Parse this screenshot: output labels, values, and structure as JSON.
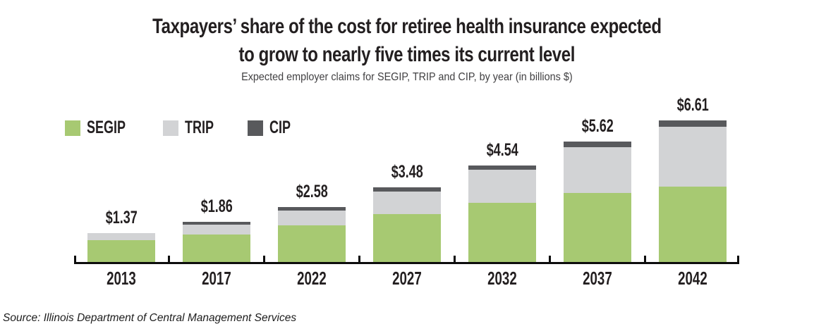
{
  "title": {
    "line1": "Taxpayers’ share of the cost for retiree health insurance expected",
    "line2": "to grow to nearly five times its current level"
  },
  "subtitle": "Expected employer claims for SEGIP, TRIP and CIP, by year (in billions $)",
  "source": "Source: Illinois Department of Central Management Services",
  "colors": {
    "segip_green": "#a7c972",
    "trip_gray": "#d2d3d5",
    "cip_dark_gray": "#58595c",
    "text": "#231f20",
    "axis": "#0d0d0d"
  },
  "chart_data": {
    "type": "bar",
    "stacked": true,
    "title": "Taxpayers’ share of the cost for retiree health insurance expected to grow to nearly five times its current level",
    "subtitle": "Expected employer claims for SEGIP, TRIP and CIP, by year (in billions $)",
    "unit": "billions $",
    "grid": false,
    "legend_position": "top-left",
    "ylim": [
      0,
      7
    ],
    "categories": [
      "2013",
      "2017",
      "2022",
      "2027",
      "2032",
      "2037",
      "2042"
    ],
    "series": [
      {
        "name": "SEGIP",
        "color": "#a7c972",
        "values": [
          1.03,
          1.28,
          1.73,
          2.25,
          2.78,
          3.23,
          3.52
        ]
      },
      {
        "name": "TRIP",
        "color": "#d2d3d5",
        "values": [
          0.34,
          0.46,
          0.68,
          1.04,
          1.56,
          2.13,
          2.79
        ]
      },
      {
        "name": "CIP",
        "color": "#58595c",
        "values": [
          0.0,
          0.12,
          0.17,
          0.19,
          0.2,
          0.26,
          0.3
        ]
      }
    ],
    "totals": [
      1.37,
      1.86,
      2.58,
      3.48,
      4.54,
      5.62,
      6.61
    ],
    "total_labels": [
      "$1.37",
      "$1.86",
      "$2.58",
      "$3.48",
      "$4.54",
      "$5.62",
      "$6.61"
    ]
  }
}
